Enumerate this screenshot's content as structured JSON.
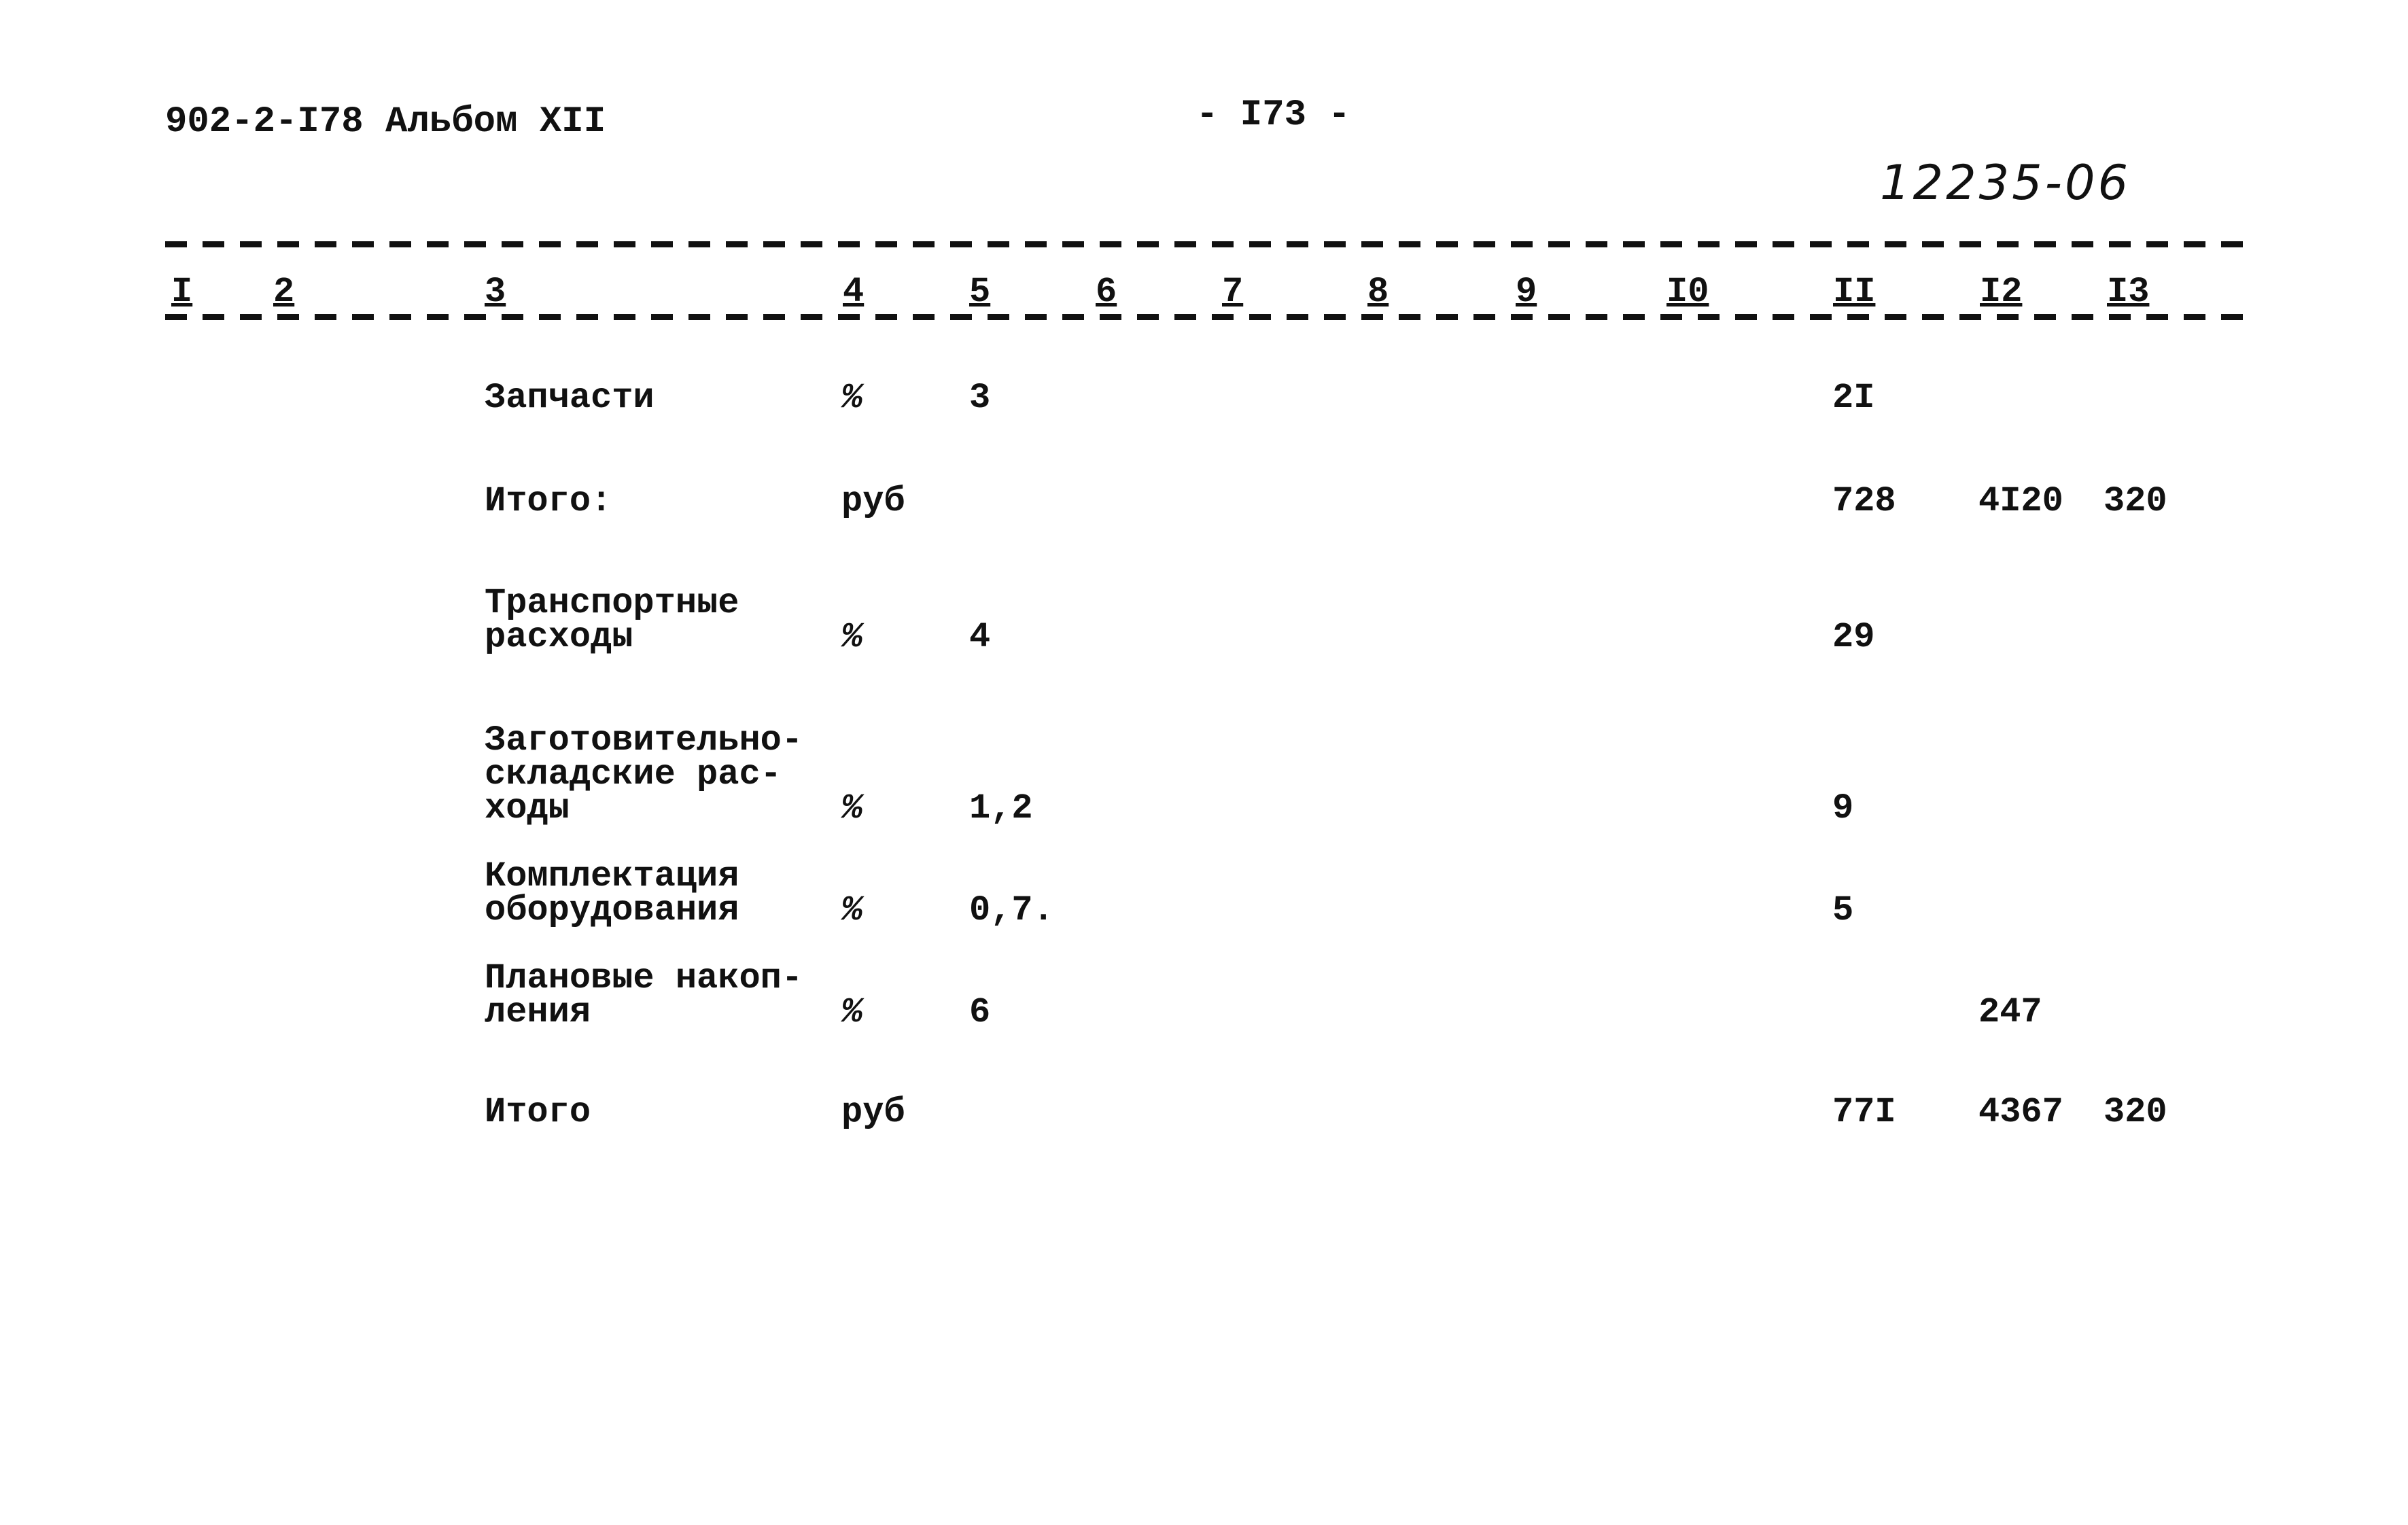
{
  "header": {
    "doc_code": "902-2-I78 Альбом XII",
    "page_number": "- I73 -",
    "handwritten_number": "12235-06"
  },
  "columns": [
    "I",
    "2",
    "3",
    "4",
    "5",
    "6",
    "7",
    "8",
    "9",
    "I0",
    "II",
    "I2",
    "I3"
  ],
  "rows": [
    {
      "name": "Запчасти",
      "unit": "%",
      "c5": "3",
      "c11": "2I",
      "c12": "",
      "c13": ""
    },
    {
      "name": "Итого:",
      "unit": "руб",
      "c5": "",
      "c11": "728",
      "c12": "4I20",
      "c13": "320"
    },
    {
      "name": "Транспортные\nрасходы",
      "unit": "%",
      "c5": "4",
      "c11": "29",
      "c12": "",
      "c13": ""
    },
    {
      "name": "Заготовительно-\nскладские рас-\nходы",
      "unit": "%",
      "c5": "1,2",
      "c11": "9",
      "c12": "",
      "c13": ""
    },
    {
      "name": "Комплектация\nоборудования",
      "unit": "%",
      "c5": "0,7.",
      "c11": "5",
      "c12": "",
      "c13": ""
    },
    {
      "name": "Плановые накоп-\nления",
      "unit": "%",
      "c5": "6",
      "c11": "",
      "c12": "247",
      "c13": ""
    },
    {
      "name": "Итого",
      "unit": "руб",
      "c5": "",
      "c11": "77I",
      "c12": "4367",
      "c13": "320"
    }
  ]
}
